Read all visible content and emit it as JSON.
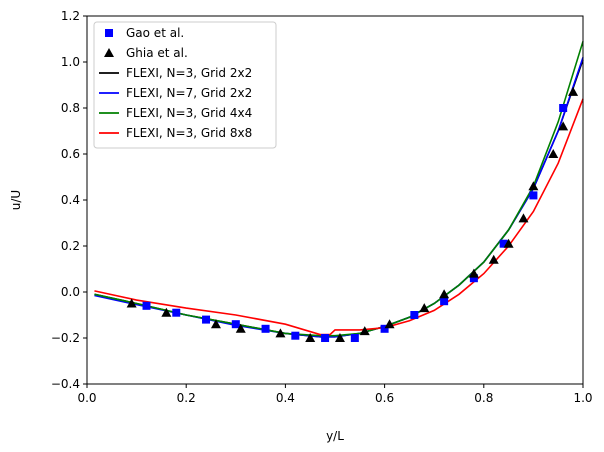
{
  "chart_data": {
    "type": "line",
    "xlabel": "y/L",
    "ylabel": "u/U",
    "xlim": [
      0,
      1
    ],
    "ylim": [
      -0.4,
      1.2
    ],
    "xticks": [
      "0.0",
      "0.2",
      "0.4",
      "0.6",
      "0.8",
      "1.0"
    ],
    "yticks": [
      "−0.4",
      "−0.2",
      "0.0",
      "0.2",
      "0.4",
      "0.6",
      "0.8",
      "1.0",
      "1.2"
    ],
    "legend_position": "top-left",
    "series": [
      {
        "name": "Gao et al.",
        "kind": "square",
        "color": "#0000ff",
        "x": [
          0.12,
          0.18,
          0.24,
          0.3,
          0.36,
          0.42,
          0.48,
          0.54,
          0.6,
          0.66,
          0.72,
          0.78,
          0.84,
          0.9,
          0.96
        ],
        "y": [
          -0.06,
          -0.09,
          -0.12,
          -0.14,
          -0.16,
          -0.19,
          -0.2,
          -0.2,
          -0.16,
          -0.1,
          -0.04,
          0.06,
          0.21,
          0.42,
          0.8
        ]
      },
      {
        "name": "Ghia et al.",
        "kind": "triangle",
        "color": "#000000",
        "x": [
          0.09,
          0.16,
          0.26,
          0.31,
          0.39,
          0.45,
          0.51,
          0.56,
          0.61,
          0.68,
          0.72,
          0.78,
          0.82,
          0.85,
          0.88,
          0.9,
          0.94,
          0.96,
          0.98
        ],
        "y": [
          -0.05,
          -0.09,
          -0.14,
          -0.16,
          -0.18,
          -0.2,
          -0.2,
          -0.17,
          -0.14,
          -0.07,
          -0.01,
          0.08,
          0.14,
          0.21,
          0.32,
          0.46,
          0.6,
          0.72,
          0.87
        ]
      },
      {
        "name": "FLEXI, N=3, Grid 2x2",
        "kind": "line",
        "color": "#000000",
        "x": [
          0.015,
          0.1,
          0.2,
          0.3,
          0.4,
          0.47,
          0.5,
          0.55,
          0.6,
          0.65,
          0.7,
          0.75,
          0.8,
          0.85,
          0.9,
          0.95,
          1.0
        ],
        "y": [
          -0.01,
          -0.05,
          -0.1,
          -0.14,
          -0.18,
          -0.195,
          -0.195,
          -0.18,
          -0.15,
          -0.11,
          -0.05,
          0.03,
          0.13,
          0.27,
          0.45,
          0.7,
          1.01
        ]
      },
      {
        "name": "FLEXI, N=7, Grid 2x2",
        "kind": "line",
        "color": "#0000ff",
        "x": [
          0.015,
          0.1,
          0.2,
          0.3,
          0.4,
          0.47,
          0.5,
          0.55,
          0.6,
          0.65,
          0.7,
          0.75,
          0.8,
          0.85,
          0.9,
          0.95,
          1.0
        ],
        "y": [
          -0.015,
          -0.055,
          -0.1,
          -0.145,
          -0.18,
          -0.195,
          -0.195,
          -0.18,
          -0.15,
          -0.11,
          -0.05,
          0.03,
          0.13,
          0.27,
          0.45,
          0.7,
          1.02
        ]
      },
      {
        "name": "FLEXI, N=3, Grid 4x4",
        "kind": "line",
        "color": "#008000",
        "x": [
          0.015,
          0.1,
          0.2,
          0.3,
          0.4,
          0.47,
          0.5,
          0.55,
          0.6,
          0.65,
          0.7,
          0.75,
          0.8,
          0.85,
          0.9,
          0.95,
          1.0
        ],
        "y": [
          -0.01,
          -0.05,
          -0.1,
          -0.14,
          -0.18,
          -0.19,
          -0.19,
          -0.18,
          -0.15,
          -0.11,
          -0.05,
          0.03,
          0.13,
          0.27,
          0.46,
          0.74,
          1.09
        ]
      },
      {
        "name": "FLEXI, N=3, Grid 8x8",
        "kind": "line",
        "color": "#ff0000",
        "x": [
          0.015,
          0.1,
          0.2,
          0.3,
          0.4,
          0.47,
          0.49,
          0.5,
          0.55,
          0.6,
          0.65,
          0.7,
          0.75,
          0.8,
          0.85,
          0.9,
          0.95,
          1.0
        ],
        "y": [
          0.005,
          -0.035,
          -0.07,
          -0.1,
          -0.14,
          -0.185,
          -0.185,
          -0.165,
          -0.165,
          -0.155,
          -0.125,
          -0.08,
          -0.01,
          0.08,
          0.2,
          0.35,
          0.56,
          0.84
        ]
      }
    ]
  }
}
